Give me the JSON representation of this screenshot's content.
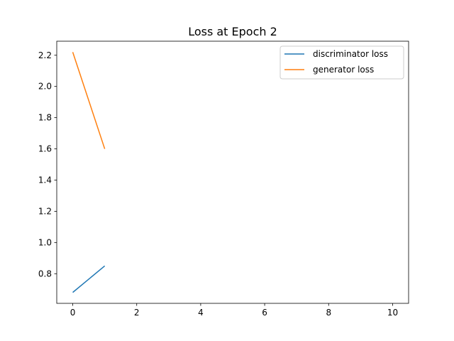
{
  "chart_data": {
    "type": "line",
    "title": "Loss at Epoch 2",
    "xlabel": "",
    "ylabel": "",
    "xlim": [
      -0.5,
      10.5
    ],
    "ylim": [
      0.61,
      2.29
    ],
    "xticks": [
      0,
      2,
      4,
      6,
      8,
      10
    ],
    "xtick_labels": [
      "0",
      "2",
      "4",
      "6",
      "8",
      "10"
    ],
    "yticks": [
      0.8,
      1.0,
      1.2,
      1.4,
      1.6,
      1.8,
      2.0,
      2.2
    ],
    "ytick_labels": [
      "0.8",
      "1.0",
      "1.2",
      "1.4",
      "1.6",
      "1.8",
      "2.0",
      "2.2"
    ],
    "grid": false,
    "legend_position": "top-right",
    "series": [
      {
        "name": "discriminator loss",
        "color": "#1f77b4",
        "x": [
          0,
          1
        ],
        "y": [
          0.68,
          0.85
        ]
      },
      {
        "name": "generator loss",
        "color": "#ff7f0e",
        "x": [
          0,
          1
        ],
        "y": [
          2.22,
          1.6
        ]
      }
    ]
  }
}
